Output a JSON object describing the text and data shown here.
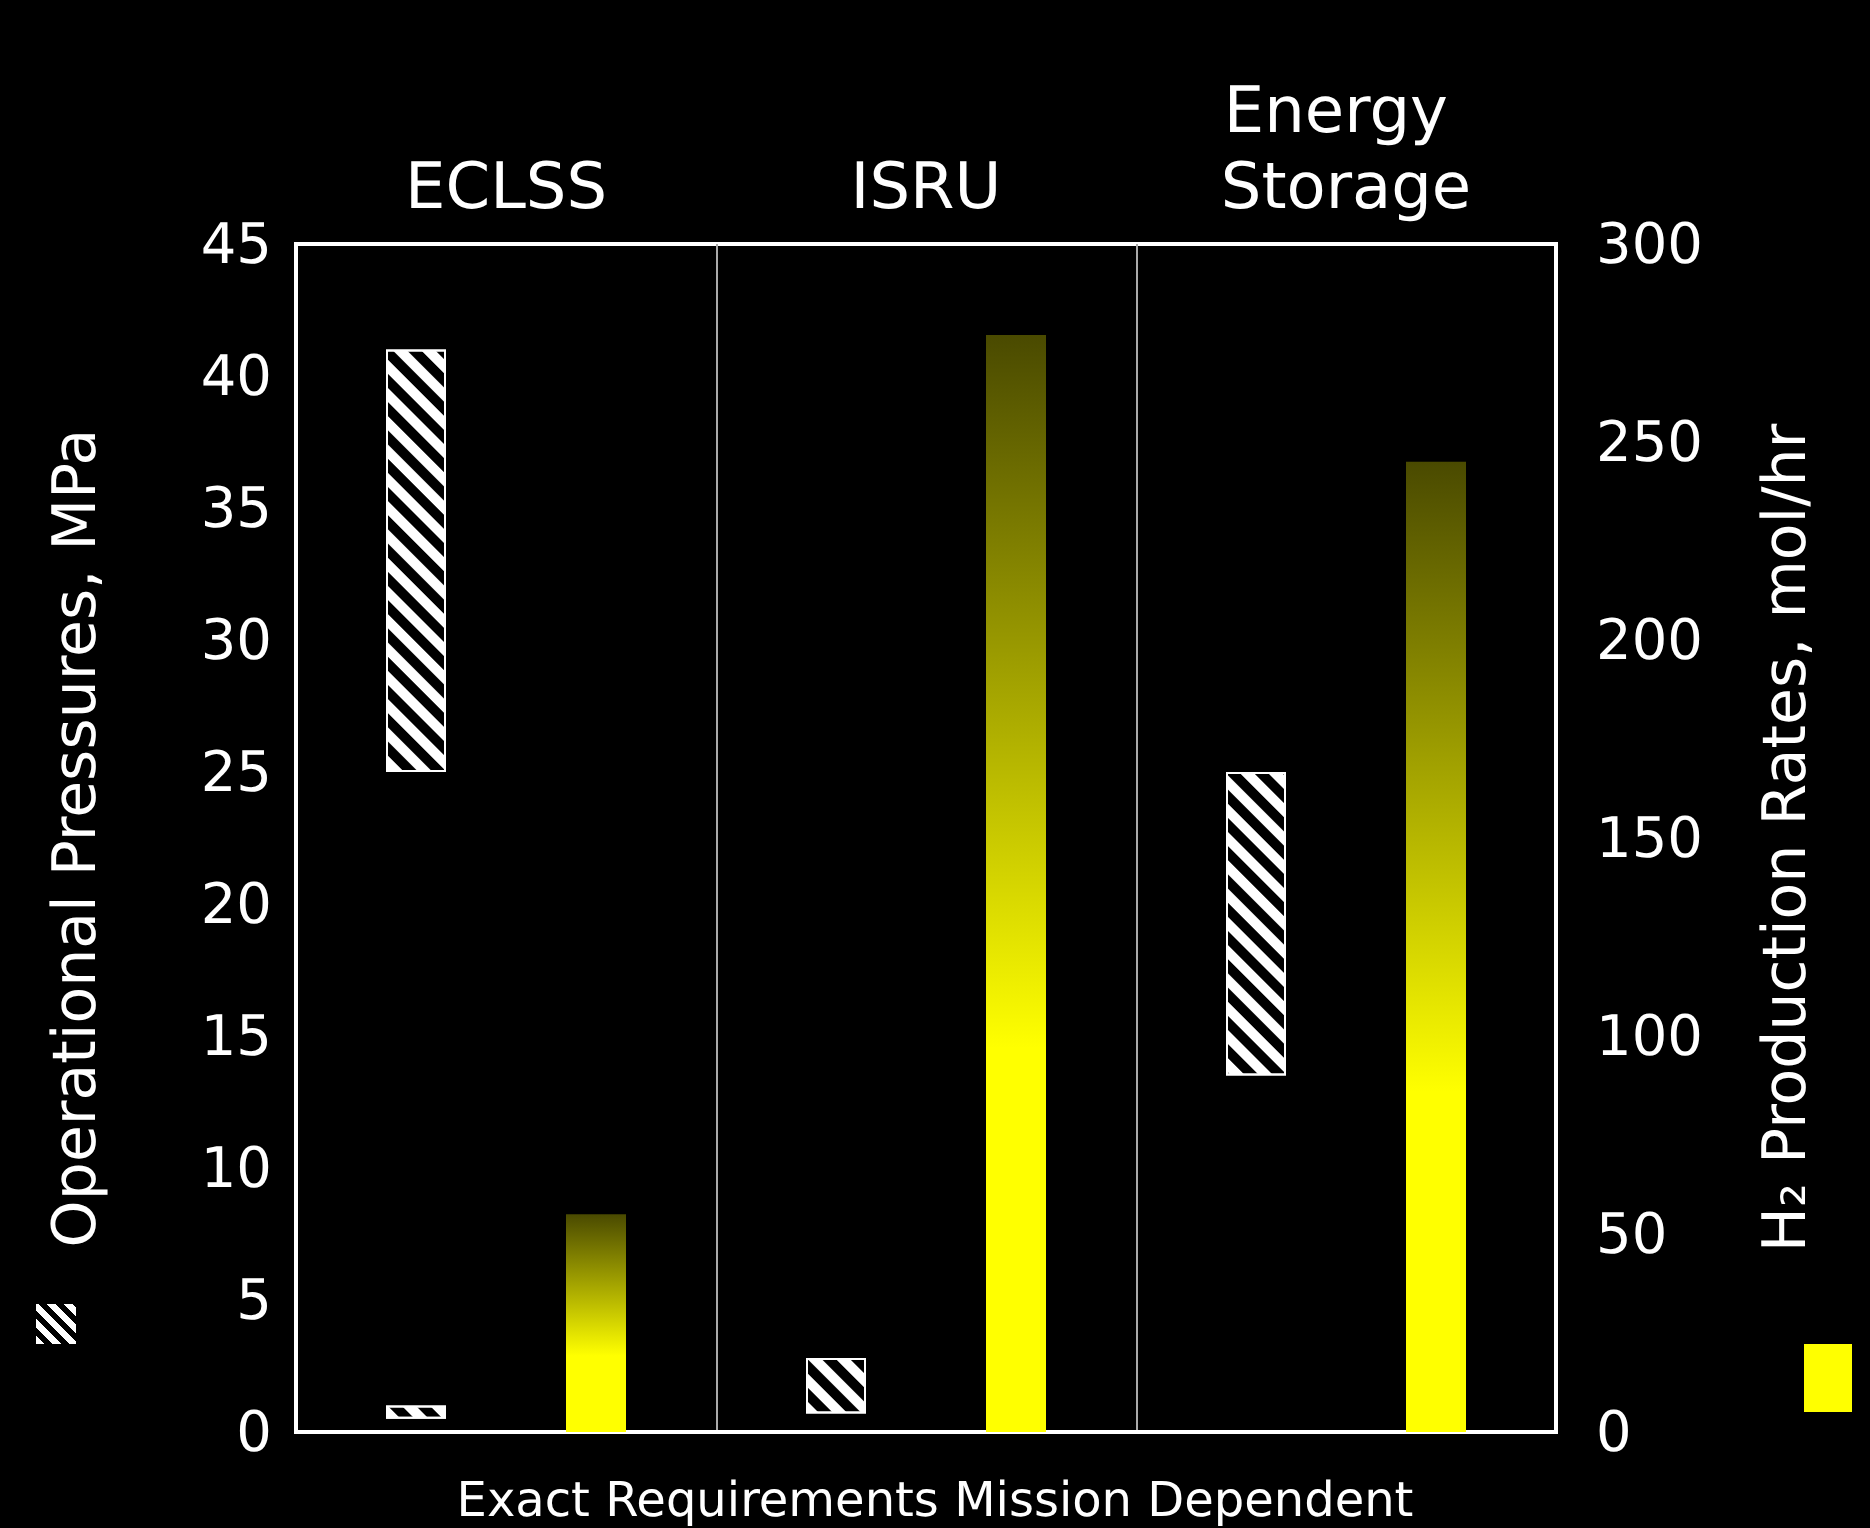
{
  "chart_data": {
    "type": "bar",
    "categories": [
      "ECLSS",
      "ISRU",
      "Energy Storage"
    ],
    "xlabel": "Exact Requirements Mission Dependent",
    "ylabel": "Operational Pressures, MPa",
    "y2label": "H₂ Production Rates, mol/hr",
    "series": [
      {
        "color": "#ffffff",
        "values": [
          0.5,
          2.1,
          null
        ],
        "base": [
          0.5,
          0.7,
          null
        ]
      },
      {
        "color": "#ffffff",
        "values": [
          16,
          null,
          11.5
        ],
        "base": [
          25,
          null,
          13.5
        ]
      },
      {
        "color": "#ffff00",
        "axis": "y2",
        "values": [
          55,
          277,
          245
        ]
      }
    ],
    "ylim": [
      0,
      45
    ],
    "yticks": [
      0,
      5,
      10,
      15,
      20,
      25,
      30,
      35,
      40,
      45
    ],
    "y2lim": [
      0,
      300
    ],
    "y2ticks": [
      0,
      50,
      100,
      150,
      200,
      250,
      300
    ],
    "grid": "x"
  }
}
